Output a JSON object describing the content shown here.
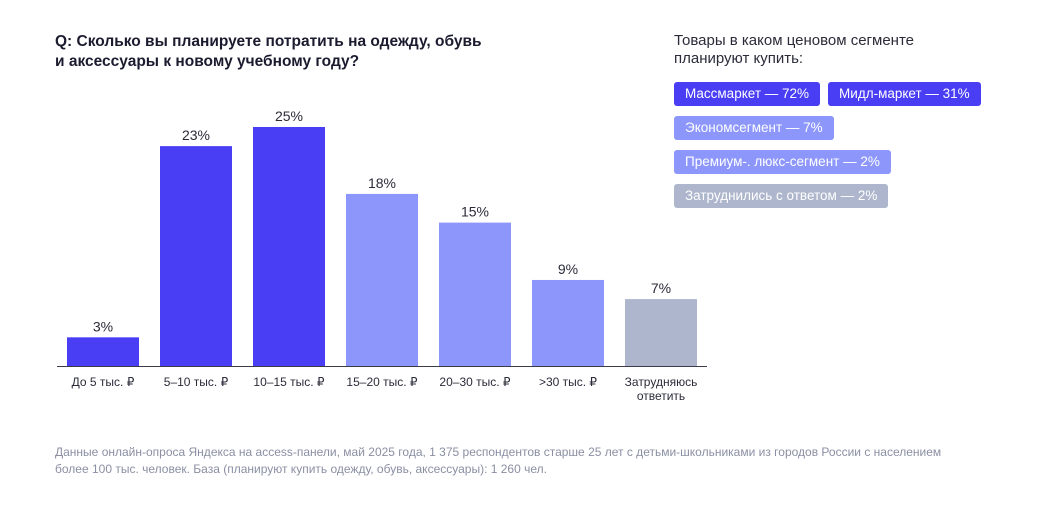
{
  "title_lines": [
    "Q: Сколько вы планируете потратить на одежду, обувь",
    "и аксессуары к новому учебному году?"
  ],
  "chart_data": {
    "type": "bar",
    "categories": [
      [
        "До 5 тыс. ₽"
      ],
      [
        "5–10 тыс. ₽"
      ],
      [
        "10–15 тыс. ₽"
      ],
      [
        "15–20 тыс. ₽"
      ],
      [
        "20–30 тыс. ₽"
      ],
      [
        ">30 тыс. ₽"
      ],
      [
        "Затрудняюсь",
        "ответить"
      ]
    ],
    "values": [
      3,
      23,
      25,
      18,
      15,
      9,
      7
    ],
    "value_labels": [
      "3%",
      "23%",
      "25%",
      "18%",
      "15%",
      "9%",
      "7%"
    ],
    "unit": "%",
    "ylim": [
      0,
      25
    ],
    "grid": false,
    "bar_colors": [
      "#4a3ef5",
      "#4a3ef5",
      "#4a3ef5",
      "#8d97fb",
      "#8d97fb",
      "#8d97fb",
      "#adb6cc"
    ]
  },
  "side_panel": {
    "title_lines": [
      "Товары в каком ценовом сегменте",
      "планируют купить:"
    ],
    "tag_rows": [
      [
        {
          "label": "Массмаркет — 72%",
          "bg": "#4a3ef5",
          "color": "#ffffff"
        },
        {
          "label": "Мидл-маркет — 31%",
          "bg": "#4a3ef5",
          "color": "#ffffff"
        }
      ],
      [
        {
          "label": "Экономсегмент — 7%",
          "bg": "#8d97fb",
          "color": "#ffffff"
        }
      ],
      [
        {
          "label": "Премиум-. люкс-сегмент — 2%",
          "bg": "#8d97fb",
          "color": "#ffffff"
        }
      ],
      [
        {
          "label": "Затруднились с ответом  —  2%",
          "bg": "#adb6cc",
          "color": "#ffffff"
        }
      ]
    ]
  },
  "footnote_lines": [
    "Данные онлайн-опроса Яндекса на access-панели, май 2025 года, 1 375 респондентов старше 25 лет с детьми-школьниками из городов России с населением",
    "более 100 тыс. человек. База (планируют купить одежду, обувь, аксессуары): 1 260 чел."
  ]
}
